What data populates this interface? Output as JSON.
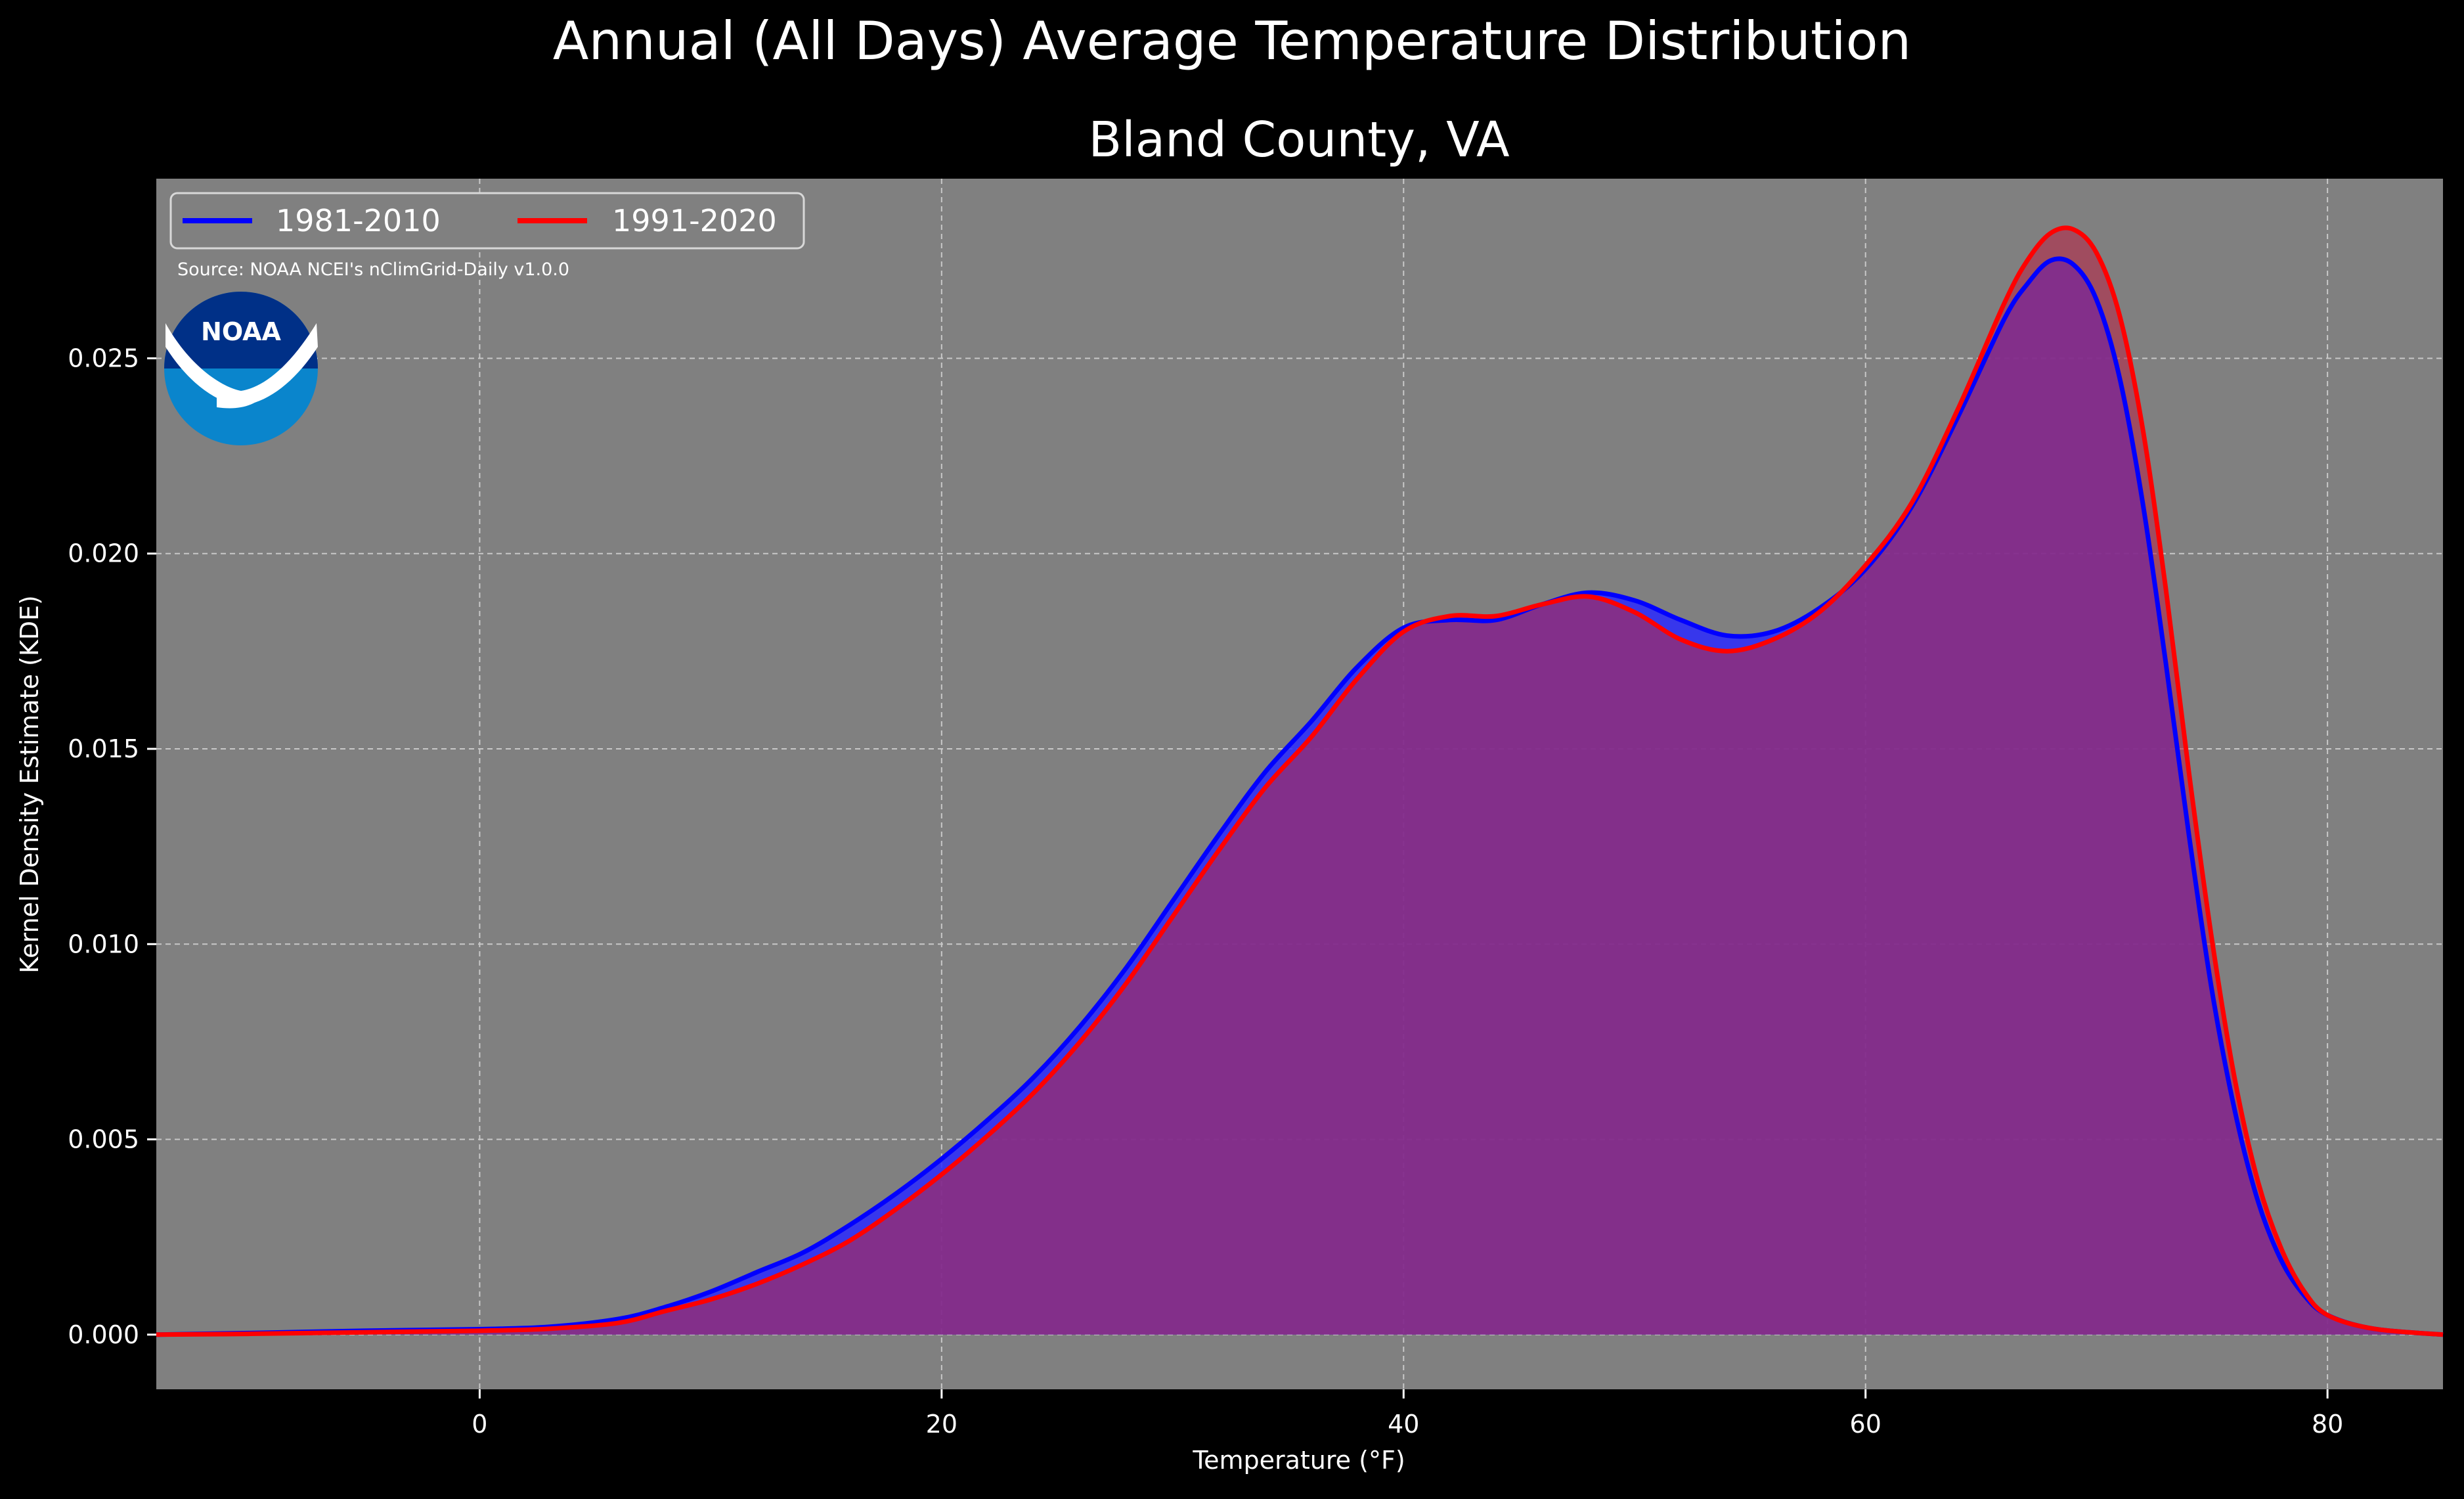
{
  "chart_data": {
    "type": "area",
    "suptitle": "Annual (All Days) Average Temperature Distribution",
    "title": "Bland County, VA",
    "xlabel": "Temperature (°F)",
    "ylabel": "Kernel Density Estimate (KDE)",
    "xlim": [
      -14,
      85
    ],
    "ylim": [
      -0.0014,
      0.0296
    ],
    "xticks": [
      0,
      20,
      40,
      60,
      80
    ],
    "xtick_labels": [
      "0",
      "20",
      "40",
      "60",
      "80"
    ],
    "yticks": [
      0.0,
      0.005,
      0.01,
      0.015,
      0.02,
      0.025
    ],
    "ytick_labels": [
      "0.000",
      "0.005",
      "0.010",
      "0.015",
      "0.020",
      "0.025"
    ],
    "grid": true,
    "legend_position": "top-left",
    "source_note": "Source: NOAA NCEI's nClimGrid-Daily v1.0.0",
    "logo_text": "NOAA",
    "background_color": "#808080",
    "figure_color": "#000000",
    "series": [
      {
        "name": "1981-2010",
        "color": "#0000ff",
        "fill": "#2a2aff",
        "x": [
          -14,
          -10,
          -5,
          0,
          3,
          6,
          8,
          10,
          12,
          14,
          16,
          18,
          20,
          22,
          24,
          26,
          28,
          30,
          32,
          34,
          36,
          38,
          40,
          42,
          44,
          46,
          48,
          50,
          52,
          54,
          56,
          58,
          60,
          62,
          64,
          66,
          67,
          68,
          69,
          70,
          71,
          72,
          73,
          74,
          75,
          76,
          77,
          78,
          79,
          80,
          82,
          85
        ],
        "y": [
          0.0,
          4e-05,
          0.0001,
          0.00014,
          0.0002,
          0.0004,
          0.0007,
          0.0011,
          0.0016,
          0.0021,
          0.0028,
          0.0036,
          0.0045,
          0.0055,
          0.0066,
          0.0079,
          0.0094,
          0.0111,
          0.0128,
          0.0144,
          0.0157,
          0.0171,
          0.0181,
          0.0183,
          0.0183,
          0.0187,
          0.019,
          0.0188,
          0.0183,
          0.0179,
          0.018,
          0.0186,
          0.0196,
          0.0212,
          0.0235,
          0.026,
          0.0269,
          0.0275,
          0.0274,
          0.0265,
          0.0245,
          0.0213,
          0.0172,
          0.0128,
          0.0088,
          0.0057,
          0.0034,
          0.0019,
          0.001,
          0.0005,
          0.00015,
          0.0
        ]
      },
      {
        "name": "1991-2020",
        "color": "#ff0000",
        "fill": "#b52a4a",
        "x": [
          -14,
          -10,
          -5,
          0,
          3,
          6,
          8,
          10,
          12,
          14,
          16,
          18,
          20,
          22,
          24,
          26,
          28,
          30,
          32,
          34,
          36,
          38,
          40,
          42,
          44,
          46,
          48,
          50,
          52,
          54,
          56,
          58,
          60,
          62,
          64,
          66,
          67,
          68,
          69,
          70,
          71,
          72,
          73,
          74,
          75,
          76,
          77,
          78,
          79,
          80,
          82,
          85
        ],
        "y": [
          0.0,
          2e-05,
          6e-05,
          0.0001,
          0.00015,
          0.0003,
          0.0006,
          0.0009,
          0.0013,
          0.0018,
          0.0024,
          0.0032,
          0.0041,
          0.0051,
          0.0062,
          0.0075,
          0.009,
          0.0107,
          0.0124,
          0.014,
          0.0153,
          0.0168,
          0.018,
          0.0184,
          0.0184,
          0.0187,
          0.0189,
          0.0185,
          0.0178,
          0.0175,
          0.0178,
          0.0185,
          0.0197,
          0.0213,
          0.0237,
          0.0264,
          0.0275,
          0.0282,
          0.0283,
          0.0277,
          0.0261,
          0.0232,
          0.0191,
          0.0144,
          0.0101,
          0.0065,
          0.0039,
          0.0022,
          0.0011,
          0.0005,
          0.00015,
          0.0
        ]
      }
    ]
  }
}
